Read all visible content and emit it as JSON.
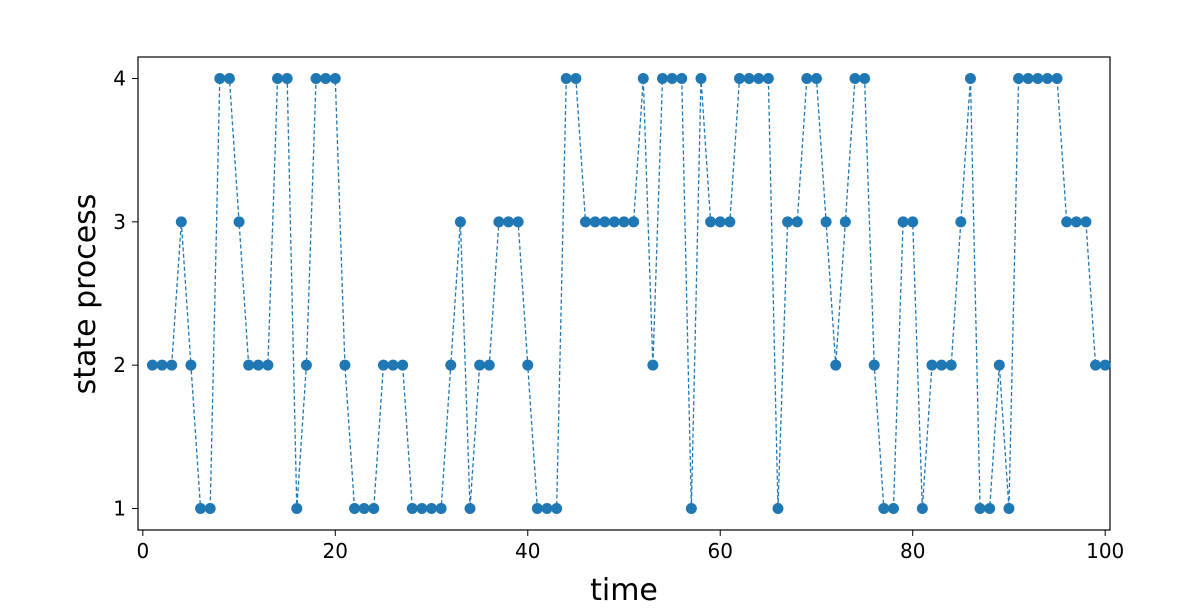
{
  "chart_data": {
    "type": "line",
    "title": "",
    "xlabel": "time",
    "ylabel": "state process",
    "xlim": [
      -0.5,
      100.5
    ],
    "ylim": [
      0.85,
      4.15
    ],
    "xticks": [
      0,
      20,
      40,
      60,
      80,
      100
    ],
    "yticks": [
      1,
      2,
      3,
      4
    ],
    "grid": false,
    "line_style": "dashed",
    "marker": "circle",
    "color": "#1f77b4",
    "series": [
      {
        "x": [
          1,
          2,
          3,
          4,
          5,
          6,
          7,
          8,
          9,
          10,
          11,
          12,
          13,
          14,
          15,
          16,
          17,
          18,
          19,
          20,
          21,
          22,
          23,
          24,
          25,
          26,
          27,
          28,
          29,
          30,
          31,
          32,
          33,
          34,
          35,
          36,
          37,
          38,
          39,
          40,
          41,
          42,
          43,
          44,
          45,
          46,
          47,
          48,
          49,
          50,
          51,
          52,
          53,
          54,
          55,
          56,
          57,
          58,
          59,
          60,
          61,
          62,
          63,
          64,
          65,
          66,
          67,
          68,
          69,
          70,
          71,
          72,
          73,
          74,
          75,
          76,
          77,
          78,
          79,
          80,
          81,
          82,
          83,
          84,
          85,
          86,
          87,
          88,
          89,
          90,
          91,
          92,
          93,
          94,
          95,
          96,
          97,
          98,
          99,
          100
        ],
        "y": [
          2,
          2,
          2,
          3,
          2,
          1,
          1,
          4,
          4,
          3,
          2,
          2,
          2,
          4,
          4,
          1,
          2,
          4,
          4,
          4,
          2,
          1,
          1,
          1,
          2,
          2,
          2,
          1,
          1,
          1,
          1,
          2,
          3,
          1,
          2,
          2,
          3,
          3,
          3,
          2,
          1,
          1,
          1,
          4,
          4,
          3,
          3,
          3,
          3,
          3,
          3,
          4,
          2,
          4,
          4,
          4,
          1,
          4,
          3,
          3,
          3,
          4,
          4,
          4,
          4,
          1,
          3,
          3,
          4,
          4,
          3,
          2,
          3,
          4,
          4,
          2,
          1,
          1,
          3,
          3,
          1,
          2,
          2,
          2,
          3,
          4,
          1,
          1,
          2,
          1,
          4,
          4,
          4,
          4,
          4,
          3,
          3,
          3,
          2,
          2
        ]
      }
    ]
  }
}
